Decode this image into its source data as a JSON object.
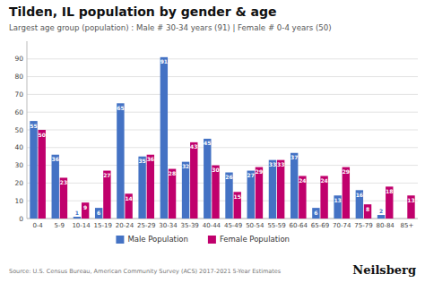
{
  "chart_data": {
    "type": "bar",
    "title": "Tilden, IL population by gender & age",
    "subtitle": "Largest age group (population) : Male # 30-34 years (91) | Female # 0-4 years (50)",
    "categories": [
      "0-4",
      "5-9",
      "10-14",
      "15-19",
      "20-24",
      "25-29",
      "30-34",
      "35-39",
      "40-44",
      "45-49",
      "50-54",
      "55-59",
      "60-64",
      "65-69",
      "70-74",
      "75-79",
      "80-84",
      "85+"
    ],
    "series": [
      {
        "name": "Male Population",
        "color": "#4472c4",
        "values": [
          55,
          36,
          1,
          6,
          65,
          35,
          91,
          32,
          45,
          26,
          27,
          33,
          37,
          6,
          13,
          16,
          2,
          0
        ]
      },
      {
        "name": "Female Population",
        "color": "#c0006c",
        "values": [
          50,
          23,
          9,
          27,
          14,
          36,
          28,
          43,
          30,
          15,
          29,
          33,
          24,
          24,
          29,
          8,
          18,
          13
        ]
      }
    ],
    "ylim": [
      0,
      100
    ],
    "yticks": [
      0,
      10,
      20,
      30,
      40,
      50,
      60,
      70,
      80,
      90
    ],
    "grid": true,
    "legend": "bottom",
    "data_labels": true,
    "annotations": [
      "Source: U.S. Census Bureau, American Community Survey (ACS) 2017-2021 5-Year Estimates",
      "Neilsberg"
    ]
  }
}
